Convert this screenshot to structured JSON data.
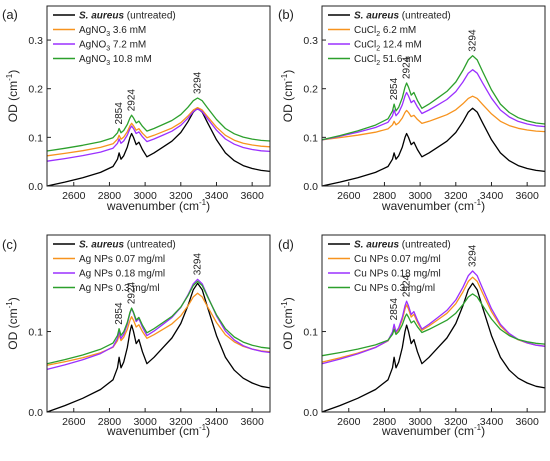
{
  "chart_data": [
    {
      "type": "line",
      "panel": "(a)",
      "xlabel": "wavenumber (cm-1)",
      "xlabel_main": "wavenumber (cm",
      "xlabel_sup": "-1",
      "xlabel_end": ")",
      "ylabel_main": "OD (cm",
      "ylabel_sup": "-1",
      "ylabel_end": ")",
      "xlim": [
        2450,
        3700
      ],
      "ylim": [
        0.0,
        0.37
      ],
      "xticks": [
        2600,
        2800,
        3000,
        3200,
        3400,
        3600
      ],
      "yticks": [
        0.0,
        0.1,
        0.2,
        0.3
      ],
      "ytick_labels": [
        "0.0",
        "0.1",
        "0.2",
        "0.3"
      ],
      "legend_placement": "top-left",
      "peaks": [
        "2854",
        "2924",
        "3294"
      ],
      "series": [
        {
          "name_parts": [
            "S. aureus",
            " (untreated)"
          ],
          "color": "#000000",
          "base": 0.0,
          "scale": 1.0
        },
        {
          "name_parts": [
            "AgNO",
            "3",
            " 3.6 mM"
          ],
          "color": "#f7931e",
          "base": 0.062,
          "scale": 0.62
        },
        {
          "name_parts": [
            "AgNO",
            "3",
            " 7.2 mM"
          ],
          "color": "#9b30ff",
          "base": 0.051,
          "scale": 0.67
        },
        {
          "name_parts": [
            "AgNO",
            "3",
            " 10.8 mM"
          ],
          "color": "#2ca02c",
          "base": 0.072,
          "scale": 0.68
        }
      ]
    },
    {
      "type": "line",
      "panel": "(b)",
      "xlim": [
        2450,
        3700
      ],
      "ylim": [
        0.0,
        0.37
      ],
      "xticks": [
        2600,
        2800,
        3000,
        3200,
        3400,
        3600
      ],
      "yticks": [
        0.0,
        0.1,
        0.2,
        0.3
      ],
      "ytick_labels": [
        "0.0",
        "0.1",
        "0.2",
        "0.3"
      ],
      "legend_placement": "top-left",
      "peaks": [
        "2854",
        "2924",
        "3294"
      ],
      "series": [
        {
          "name_parts": [
            "S. aureus",
            " (untreated)"
          ],
          "color": "#000000",
          "base": 0.0,
          "scale": 1.0
        },
        {
          "name_parts": [
            "CuCl",
            "2",
            " 6.2 mM"
          ],
          "color": "#f7931e",
          "base": 0.095,
          "scale": 0.56
        },
        {
          "name_parts": [
            "CuCl",
            "2",
            " 12.4 mM"
          ],
          "color": "#9b30ff",
          "base": 0.095,
          "scale": 0.9
        },
        {
          "name_parts": [
            "CuCl",
            "2",
            " 51.6 mM"
          ],
          "color": "#2ca02c",
          "base": 0.095,
          "scale": 1.08
        }
      ]
    },
    {
      "type": "line",
      "panel": "(c)",
      "xlim": [
        2450,
        3700
      ],
      "ylim": [
        0.0,
        0.22
      ],
      "xticks": [
        2600,
        2800,
        3000,
        3200,
        3400,
        3600
      ],
      "yticks": [
        0.0,
        0.1
      ],
      "ytick_labels": [
        "0.0",
        "0.1"
      ],
      "legend_placement": "top-left",
      "peaks": [
        "2854",
        "2924",
        "3294"
      ],
      "series": [
        {
          "name_parts": [
            "S. aureus",
            " (untreated)"
          ],
          "color": "#000000",
          "base": 0.0,
          "scale": 1.0
        },
        {
          "name_parts": [
            "Ag NPs 0.07 mg/ml"
          ],
          "color": "#f7931e",
          "base": 0.058,
          "scale": 0.56
        },
        {
          "name_parts": [
            "Ag NPs 0.18 mg/ml"
          ],
          "color": "#9b30ff",
          "base": 0.053,
          "scale": 0.7
        },
        {
          "name_parts": [
            "Ag NPs 0.3 mg/ml"
          ],
          "color": "#2ca02c",
          "base": 0.06,
          "scale": 0.64
        }
      ]
    },
    {
      "type": "line",
      "panel": "(d)",
      "xlim": [
        2450,
        3700
      ],
      "ylim": [
        0.0,
        0.22
      ],
      "xticks": [
        2600,
        2800,
        3000,
        3200,
        3400,
        3600
      ],
      "yticks": [
        0.0,
        0.1
      ],
      "ytick_labels": [
        "0.0",
        "0.1"
      ],
      "legend_placement": "top-left",
      "peaks": [
        "2854",
        "2924",
        "3294"
      ],
      "series": [
        {
          "name_parts": [
            "S. aureus",
            " (untreated)"
          ],
          "color": "#000000",
          "base": 0.0,
          "scale": 1.0
        },
        {
          "name_parts": [
            "Cu NPs 0.07 mg/ml"
          ],
          "color": "#f7931e",
          "base": 0.062,
          "scale": 0.66
        },
        {
          "name_parts": [
            "Cu NPs 0.18 mg/ml"
          ],
          "color": "#9b30ff",
          "base": 0.06,
          "scale": 0.72
        },
        {
          "name_parts": [
            "Cu NPs 0.3 mg/ml"
          ],
          "color": "#2ca02c",
          "base": 0.07,
          "scale": 0.48
        }
      ]
    }
  ],
  "untreated_spectrum_x": [
    2450,
    2550,
    2650,
    2750,
    2820,
    2845,
    2854,
    2865,
    2880,
    2900,
    2915,
    2924,
    2935,
    2950,
    2965,
    2985,
    3010,
    3050,
    3100,
    3150,
    3200,
    3240,
    3270,
    3294,
    3320,
    3350,
    3400,
    3450,
    3500,
    3550,
    3600,
    3650,
    3700
  ],
  "untreated_spectrum_y": [
    0.0,
    0.008,
    0.017,
    0.028,
    0.04,
    0.055,
    0.068,
    0.055,
    0.062,
    0.08,
    0.1,
    0.108,
    0.1,
    0.085,
    0.09,
    0.075,
    0.06,
    0.068,
    0.08,
    0.092,
    0.11,
    0.132,
    0.152,
    0.16,
    0.152,
    0.13,
    0.095,
    0.068,
    0.052,
    0.042,
    0.036,
    0.032,
    0.03
  ]
}
